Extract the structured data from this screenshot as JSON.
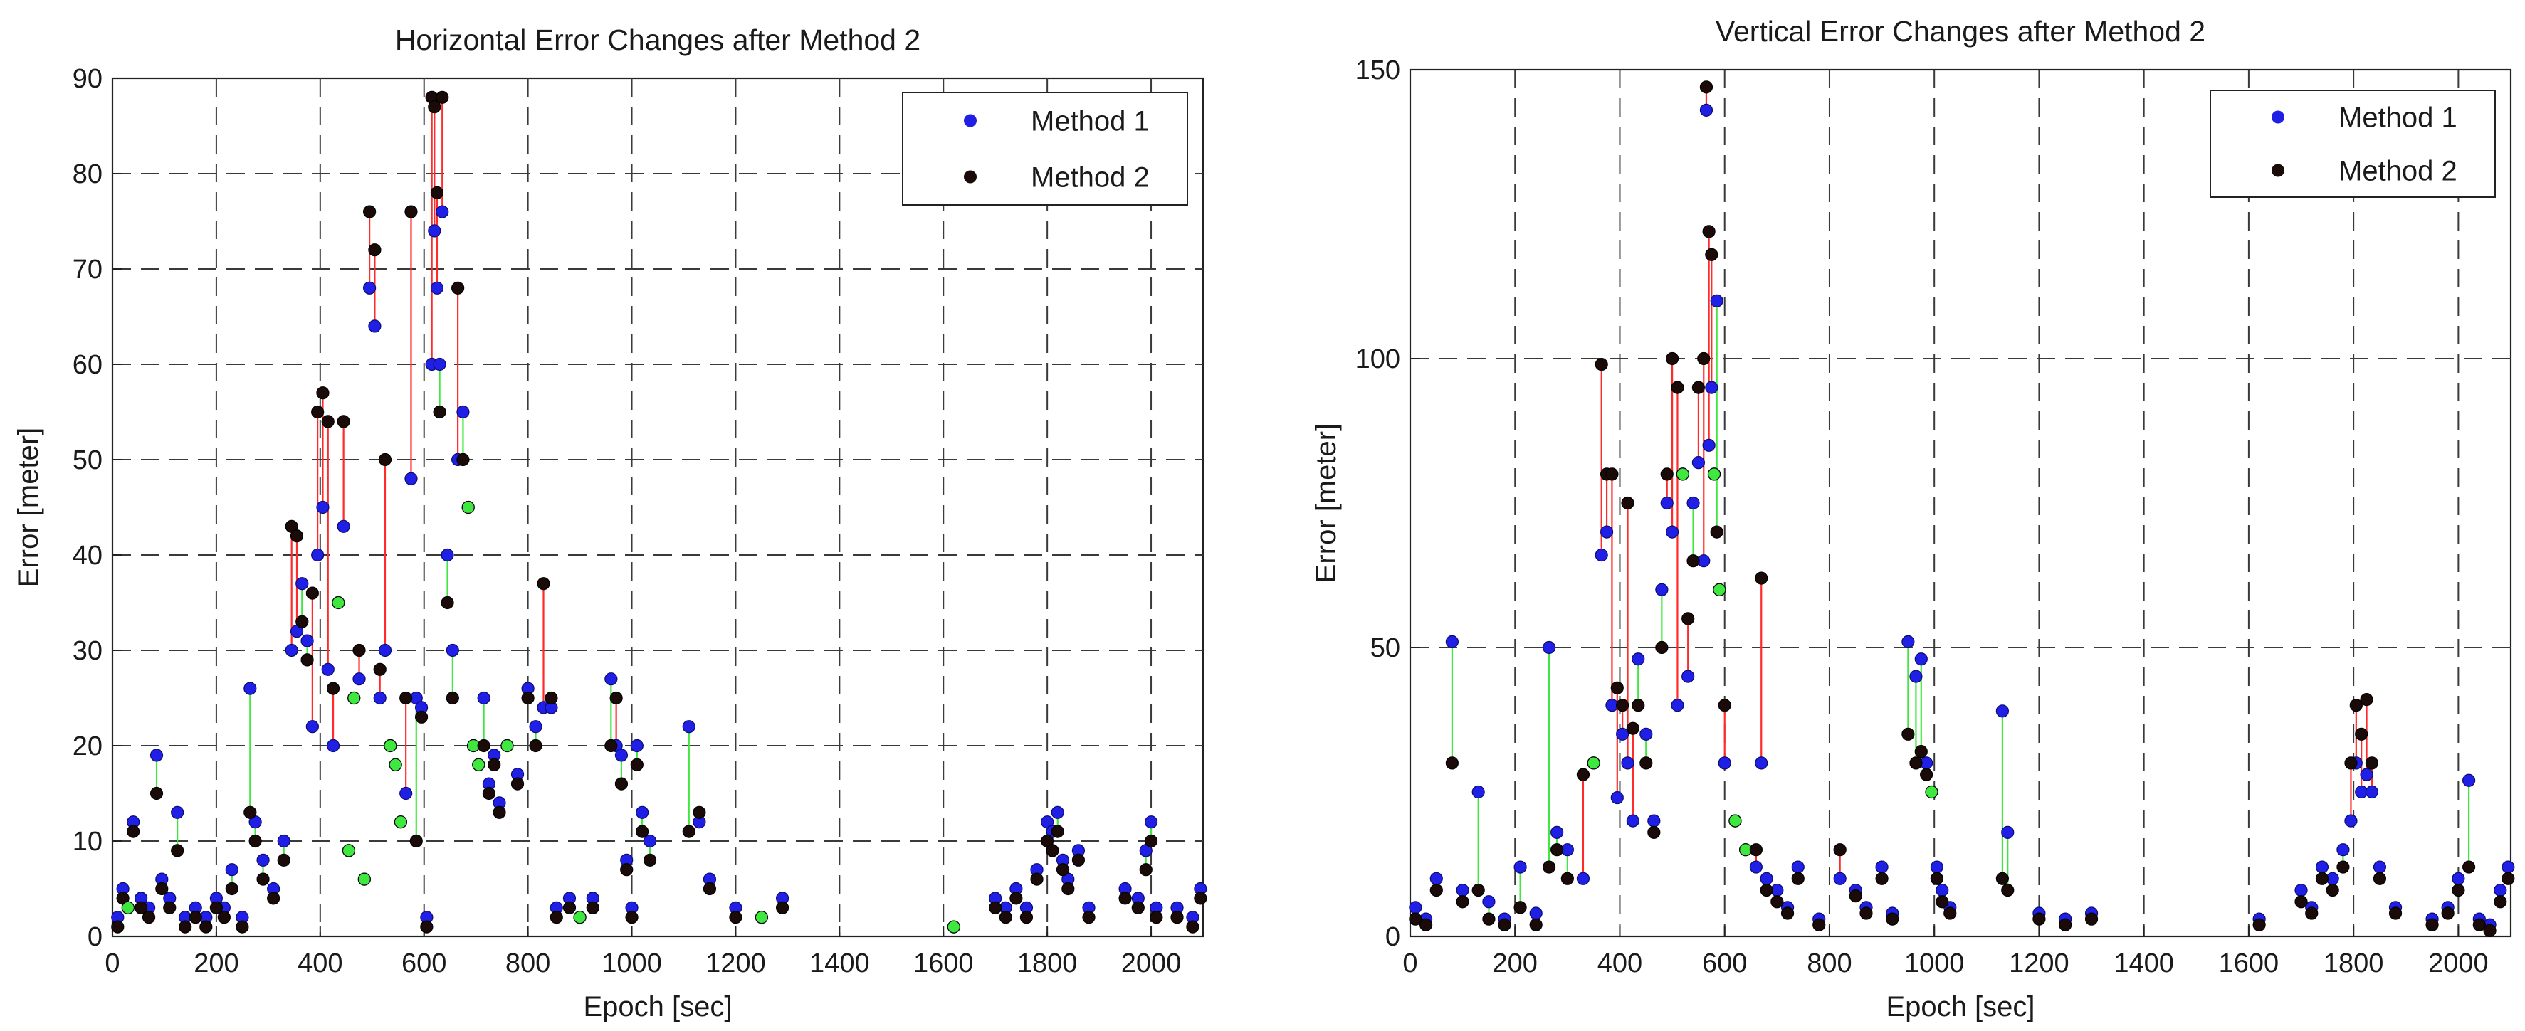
{
  "colors": {
    "method1": "#1f1fe6",
    "method2": "#1a0b08",
    "increase": "#ff2a2a",
    "decrease": "#3ee83e",
    "unchanged_marker": "#3ee83e"
  },
  "chart_data": [
    {
      "type": "scatter",
      "title": "Horizontal Error Changes after Method 2",
      "xlabel": "Epoch [sec]",
      "ylabel": "Error [meter]",
      "xlim": [
        0,
        2100
      ],
      "ylim": [
        0,
        90
      ],
      "xticks": [
        0,
        200,
        400,
        600,
        800,
        1000,
        1200,
        1400,
        1600,
        1800,
        2000
      ],
      "yticks": [
        0,
        10,
        20,
        30,
        40,
        50,
        60,
        70,
        80,
        90
      ],
      "grid": true,
      "legend_position": "top-right",
      "legend": [
        "Method 1",
        "Method 2"
      ],
      "x": [
        10,
        20,
        30,
        40,
        55,
        70,
        85,
        95,
        110,
        125,
        140,
        160,
        180,
        200,
        215,
        230,
        250,
        265,
        275,
        290,
        310,
        330,
        345,
        355,
        365,
        375,
        385,
        395,
        405,
        415,
        425,
        435,
        445,
        455,
        465,
        475,
        485,
        495,
        505,
        515,
        525,
        535,
        545,
        555,
        565,
        575,
        585,
        595,
        605,
        615,
        620,
        625,
        630,
        635,
        645,
        655,
        665,
        675,
        685,
        695,
        705,
        715,
        725,
        735,
        745,
        760,
        780,
        800,
        815,
        830,
        845,
        855,
        880,
        900,
        925,
        960,
        970,
        980,
        990,
        1000,
        1010,
        1020,
        1035,
        1110,
        1130,
        1150,
        1200,
        1250,
        1290,
        1620,
        1700,
        1720,
        1740,
        1760,
        1780,
        1800,
        1810,
        1820,
        1830,
        1840,
        1860,
        1880,
        1950,
        1975,
        1990,
        2000,
        2010,
        2050,
        2080,
        2095
      ],
      "series": [
        {
          "name": "Method 1",
          "values": [
            2,
            5,
            3,
            12,
            4,
            3,
            19,
            6,
            4,
            13,
            2,
            3,
            2,
            4,
            3,
            7,
            2,
            26,
            12,
            8,
            5,
            10,
            30,
            32,
            37,
            31,
            22,
            40,
            45,
            28,
            20,
            35,
            43,
            9,
            25,
            27,
            6,
            68,
            64,
            25,
            30,
            20,
            18,
            12,
            15,
            48,
            25,
            24,
            2,
            60,
            74,
            68,
            60,
            76,
            40,
            30,
            50,
            55,
            45,
            20,
            18,
            25,
            16,
            19,
            14,
            20,
            17,
            26,
            22,
            24,
            24,
            3,
            4,
            2,
            4,
            27,
            20,
            19,
            8,
            3,
            20,
            13,
            10,
            22,
            12,
            6,
            3,
            2,
            4,
            1,
            4,
            3,
            5,
            3,
            7,
            12,
            11,
            13,
            8,
            6,
            9,
            3,
            5,
            4,
            9,
            12,
            3,
            3,
            2,
            5
          ]
        },
        {
          "name": "Method 2",
          "values": [
            1,
            4,
            3,
            11,
            3,
            2,
            15,
            5,
            3,
            9,
            1,
            2,
            1,
            3,
            2,
            5,
            1,
            13,
            10,
            6,
            4,
            8,
            43,
            42,
            33,
            29,
            36,
            55,
            57,
            54,
            26,
            35,
            54,
            9,
            25,
            30,
            6,
            76,
            72,
            28,
            50,
            20,
            18,
            12,
            25,
            76,
            10,
            23,
            1,
            88,
            87,
            78,
            55,
            88,
            35,
            25,
            68,
            50,
            45,
            20,
            18,
            20,
            15,
            18,
            13,
            20,
            16,
            25,
            20,
            37,
            25,
            2,
            3,
            2,
            3,
            20,
            25,
            16,
            7,
            2,
            18,
            11,
            8,
            11,
            13,
            5,
            2,
            2,
            3,
            1,
            3,
            2,
            4,
            2,
            6,
            10,
            9,
            11,
            7,
            5,
            8,
            2,
            4,
            3,
            7,
            10,
            2,
            2,
            1,
            4
          ]
        }
      ]
    },
    {
      "type": "scatter",
      "title": "Vertical Error Changes after Method 2",
      "xlabel": "Epoch [sec]",
      "ylabel": "Error [meter]",
      "xlim": [
        0,
        2100
      ],
      "ylim": [
        0,
        150
      ],
      "xticks": [
        0,
        200,
        400,
        600,
        800,
        1000,
        1200,
        1400,
        1600,
        1800,
        2000
      ],
      "yticks": [
        0,
        50,
        100,
        150
      ],
      "grid": true,
      "legend_position": "top-right",
      "legend": [
        "Method 1",
        "Method 2"
      ],
      "x": [
        10,
        30,
        50,
        80,
        100,
        130,
        150,
        180,
        210,
        240,
        265,
        280,
        300,
        330,
        350,
        365,
        375,
        385,
        395,
        405,
        415,
        425,
        435,
        450,
        465,
        480,
        490,
        500,
        510,
        520,
        530,
        540,
        550,
        560,
        565,
        570,
        575,
        580,
        585,
        590,
        600,
        620,
        640,
        660,
        670,
        680,
        700,
        720,
        740,
        780,
        820,
        850,
        870,
        900,
        920,
        950,
        965,
        975,
        985,
        995,
        1005,
        1015,
        1030,
        1130,
        1140,
        1200,
        1250,
        1300,
        1620,
        1700,
        1720,
        1740,
        1760,
        1780,
        1795,
        1805,
        1815,
        1825,
        1835,
        1850,
        1880,
        1950,
        1980,
        2000,
        2020,
        2040,
        2060,
        2080,
        2095
      ],
      "series": [
        {
          "name": "Method 1",
          "values": [
            5,
            3,
            10,
            51,
            8,
            25,
            6,
            3,
            12,
            4,
            50,
            18,
            15,
            10,
            30,
            66,
            70,
            40,
            24,
            35,
            30,
            20,
            48,
            35,
            20,
            60,
            75,
            70,
            40,
            80,
            45,
            75,
            82,
            65,
            143,
            85,
            95,
            80,
            110,
            60,
            30,
            20,
            15,
            12,
            30,
            10,
            8,
            5,
            12,
            3,
            10,
            8,
            5,
            12,
            4,
            51,
            45,
            48,
            30,
            25,
            12,
            8,
            5,
            39,
            18,
            4,
            3,
            4,
            3,
            8,
            5,
            12,
            10,
            15,
            20,
            30,
            25,
            28,
            25,
            12,
            5,
            3,
            5,
            10,
            27,
            3,
            2,
            8,
            12
          ]
        },
        {
          "name": "Method 2",
          "values": [
            3,
            2,
            8,
            30,
            6,
            8,
            3,
            2,
            5,
            2,
            12,
            15,
            10,
            28,
            30,
            99,
            80,
            80,
            43,
            40,
            75,
            36,
            40,
            30,
            18,
            50,
            80,
            100,
            95,
            80,
            55,
            65,
            95,
            100,
            147,
            122,
            118,
            80,
            70,
            60,
            40,
            20,
            15,
            15,
            62,
            8,
            6,
            4,
            10,
            2,
            15,
            7,
            4,
            10,
            3,
            35,
            30,
            32,
            28,
            25,
            10,
            6,
            4,
            10,
            8,
            3,
            2,
            3,
            2,
            6,
            4,
            10,
            8,
            12,
            30,
            40,
            35,
            41,
            30,
            10,
            4,
            2,
            4,
            8,
            12,
            2,
            1,
            6,
            10
          ]
        }
      ]
    }
  ]
}
